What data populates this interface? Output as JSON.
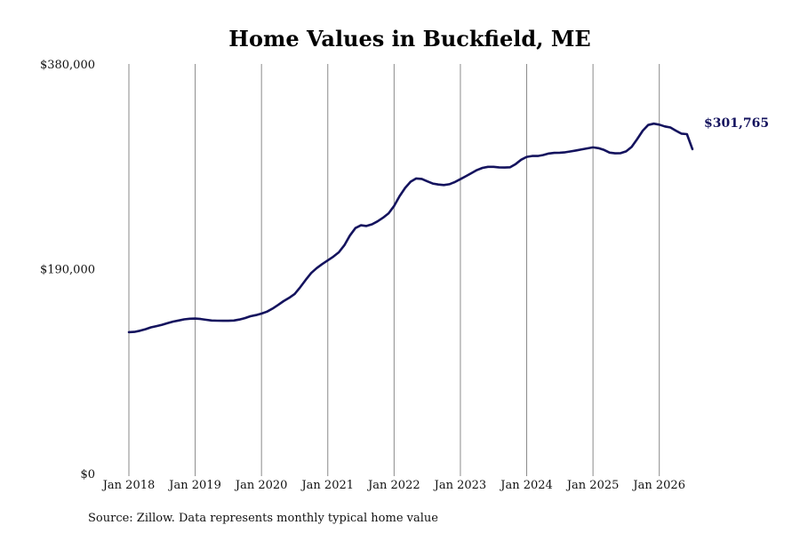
{
  "chart_data": {
    "type": "line",
    "title": "Home Values in Buckfield, ME",
    "source": "Source: Zillow. Data represents monthly typical home value",
    "ylim": [
      0,
      380000
    ],
    "yticks": [
      {
        "value": 0,
        "label": "$0"
      },
      {
        "value": 190000,
        "label": "$190,000"
      },
      {
        "value": 380000,
        "label": "$380,000"
      }
    ],
    "xticks": [
      {
        "value": 2018.0,
        "label": "Jan 2018"
      },
      {
        "value": 2019.0,
        "label": "Jan 2019"
      },
      {
        "value": 2020.0,
        "label": "Jan 2020"
      },
      {
        "value": 2021.0,
        "label": "Jan 2021"
      },
      {
        "value": 2022.0,
        "label": "Jan 2022"
      },
      {
        "value": 2023.0,
        "label": "Jan 2023"
      },
      {
        "value": 2024.0,
        "label": "Jan 2024"
      },
      {
        "value": 2025.0,
        "label": "Jan 2025"
      },
      {
        "value": 2026.0,
        "label": "Jan 2026"
      }
    ],
    "xlim": [
      2018.0,
      2026.5
    ],
    "grid": "vertical",
    "end_label": "$301,765",
    "series": [
      {
        "color": "#14135e",
        "x": [
          2018.0,
          2018.083,
          2018.167,
          2018.25,
          2018.333,
          2018.417,
          2018.5,
          2018.583,
          2018.667,
          2018.75,
          2018.833,
          2018.917,
          2019.0,
          2019.083,
          2019.167,
          2019.25,
          2019.333,
          2019.417,
          2019.5,
          2019.583,
          2019.667,
          2019.75,
          2019.833,
          2019.917,
          2020.0,
          2020.083,
          2020.167,
          2020.25,
          2020.333,
          2020.417,
          2020.5,
          2020.583,
          2020.667,
          2020.75,
          2020.833,
          2020.917,
          2021.0,
          2021.083,
          2021.167,
          2021.25,
          2021.333,
          2021.417,
          2021.5,
          2021.583,
          2021.667,
          2021.75,
          2021.833,
          2021.917,
          2022.0,
          2022.083,
          2022.167,
          2022.25,
          2022.333,
          2022.417,
          2022.5,
          2022.583,
          2022.667,
          2022.75,
          2022.833,
          2022.917,
          2023.0,
          2023.083,
          2023.167,
          2023.25,
          2023.333,
          2023.417,
          2023.5,
          2023.583,
          2023.667,
          2023.75,
          2023.833,
          2023.917,
          2024.0,
          2024.083,
          2024.167,
          2024.25,
          2024.333,
          2024.417,
          2024.5,
          2024.583,
          2024.667,
          2024.75,
          2024.833,
          2024.917,
          2025.0,
          2025.083,
          2025.167,
          2025.25,
          2025.333,
          2025.417,
          2025.5,
          2025.583,
          2025.667,
          2025.75,
          2025.833,
          2025.917,
          2026.0,
          2026.083,
          2026.167,
          2026.25,
          2026.333,
          2026.417,
          2026.5
        ],
        "values": [
          132000,
          132200,
          133300,
          134700,
          136400,
          137600,
          138800,
          140300,
          141800,
          142800,
          143800,
          144400,
          144600,
          144200,
          143400,
          142800,
          142600,
          142500,
          142500,
          142800,
          143700,
          145000,
          146700,
          147800,
          149200,
          151000,
          153800,
          157200,
          160700,
          163800,
          167400,
          173600,
          180400,
          186900,
          191400,
          195200,
          198600,
          202000,
          206100,
          212600,
          221600,
          228600,
          231100,
          230500,
          232000,
          234800,
          238100,
          242300,
          249100,
          258100,
          265800,
          271600,
          274600,
          274200,
          271900,
          269900,
          269000,
          268500,
          269200,
          271300,
          273900,
          276600,
          279500,
          282400,
          284400,
          285400,
          285400,
          284900,
          284700,
          285000,
          287900,
          292000,
          294600,
          295400,
          295400,
          296300,
          297700,
          298300,
          298500,
          298900,
          299700,
          300600,
          301600,
          302500,
          303400,
          302700,
          301000,
          298600,
          297900,
          298100,
          299700,
          303800,
          311200,
          318900,
          324200,
          325400,
          324500,
          322900,
          321900,
          318900,
          316200,
          315700,
          301765
        ]
      }
    ]
  }
}
